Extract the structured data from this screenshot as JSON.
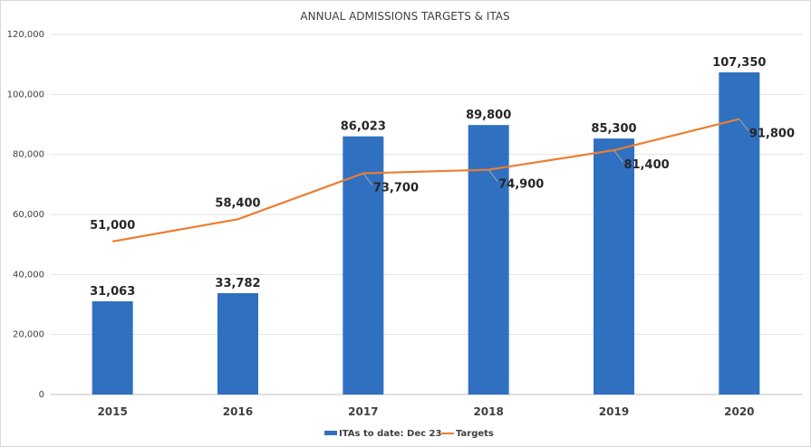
{
  "chart_data": {
    "type": "bar",
    "title": "ANNUAL ADMISSIONS TARGETS & ITAS",
    "xlabel": "",
    "ylabel": "",
    "categories": [
      "2015",
      "2016",
      "2017",
      "2018",
      "2019",
      "2020"
    ],
    "ylim": [
      0,
      120000
    ],
    "yticks": [
      0,
      20000,
      40000,
      60000,
      80000,
      100000,
      120000
    ],
    "ytick_labels": [
      "0",
      "20,000",
      "40,000",
      "60,000",
      "80,000",
      "100,000",
      "120,000"
    ],
    "grid": true,
    "legend_position": "bottom",
    "series": [
      {
        "name": "ITAs to date: Dec 23",
        "type": "bar",
        "color": "#3070C0",
        "values": [
          31063,
          33782,
          86023,
          89800,
          85300,
          107350
        ],
        "labels": [
          "31,063",
          "33,782",
          "86,023",
          "89,800",
          "85,300",
          "107,350"
        ]
      },
      {
        "name": "Targets",
        "type": "line",
        "color": "#ED7D31",
        "values": [
          51000,
          58400,
          73700,
          74900,
          81400,
          91800
        ],
        "labels": [
          "51,000",
          "58,400",
          "73,700",
          "74,900",
          "81,400",
          "91,800"
        ]
      }
    ]
  }
}
